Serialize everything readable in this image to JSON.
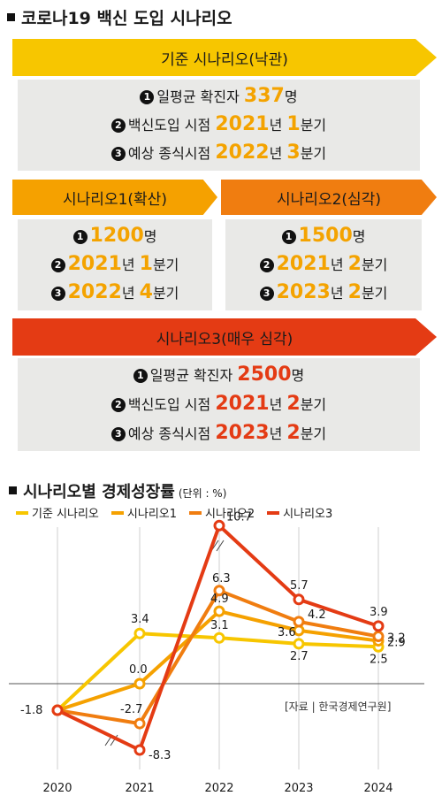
{
  "header": {
    "title": "코로나19 백신 도입 시나리오"
  },
  "scenarios": {
    "base": {
      "label": "기준 시나리오(낙관)",
      "items": [
        {
          "marker": "1",
          "prefix": "일평균 확진자 ",
          "value": "337",
          "suffix": "명"
        },
        {
          "marker": "2",
          "prefix": "백신도입 시점 ",
          "year": "2021",
          "year_unit": "년 ",
          "quarter": "1",
          "quarter_unit": "분기"
        },
        {
          "marker": "3",
          "prefix": "예상 종식시점 ",
          "year": "2022",
          "year_unit": "년 ",
          "quarter": "3",
          "quarter_unit": "분기"
        }
      ]
    },
    "s1": {
      "label": "시나리오1(확산)",
      "items": [
        {
          "marker": "1",
          "value": "1200",
          "suffix": "명"
        },
        {
          "marker": "2",
          "year": "2021",
          "year_unit": "년 ",
          "quarter": "1",
          "quarter_unit": "분기"
        },
        {
          "marker": "3",
          "year": "2022",
          "year_unit": "년 ",
          "quarter": "4",
          "quarter_unit": "분기"
        }
      ]
    },
    "s2": {
      "label": "시나리오2(심각)",
      "items": [
        {
          "marker": "1",
          "value": "1500",
          "suffix": "명"
        },
        {
          "marker": "2",
          "year": "2021",
          "year_unit": "년 ",
          "quarter": "2",
          "quarter_unit": "분기"
        },
        {
          "marker": "3",
          "year": "2023",
          "year_unit": "년 ",
          "quarter": "2",
          "quarter_unit": "분기"
        }
      ]
    },
    "s3": {
      "label": "시나리오3(매우 심각)",
      "items": [
        {
          "marker": "1",
          "prefix": "일평균 확진자 ",
          "value": "2500",
          "suffix": "명"
        },
        {
          "marker": "2",
          "prefix": "백신도입 시점 ",
          "year": "2021",
          "year_unit": "년 ",
          "quarter": "2",
          "quarter_unit": "분기"
        },
        {
          "marker": "3",
          "prefix": "예상 종식시점 ",
          "year": "2023",
          "year_unit": "년 ",
          "quarter": "2",
          "quarter_unit": "분기"
        }
      ]
    }
  },
  "colors": {
    "base": "#f7c600",
    "s1": "#f5a100",
    "s2": "#f07d10",
    "s3": "#e43b14",
    "panel": "#e9e9e7",
    "highlight_yellow": "#f4a300",
    "highlight_red": "#e43b14"
  },
  "chart_data": {
    "type": "line",
    "title": "시나리오별 경제성장률",
    "unit": "(단위 : %)",
    "x": [
      "2020",
      "2021",
      "2022",
      "2023",
      "2024"
    ],
    "series": [
      {
        "name": "기준 시나리오",
        "values": [
          -1.8,
          3.4,
          3.1,
          2.7,
          2.5
        ]
      },
      {
        "name": "시나리오1",
        "values": [
          -1.8,
          0.0,
          4.9,
          3.6,
          2.9
        ]
      },
      {
        "name": "시나리오2",
        "values": [
          -1.8,
          -2.7,
          6.3,
          4.2,
          3.2
        ]
      },
      {
        "name": "시나리오3",
        "values": [
          -1.8,
          -8.3,
          10.7,
          5.7,
          3.9
        ]
      }
    ],
    "value_labels": {
      "2020": [
        "-1.8"
      ],
      "2021": [
        "3.4",
        "0.0",
        "-2.7",
        "-8.3"
      ],
      "2022": [
        "10.7",
        "6.3",
        "4.9",
        "3.1"
      ],
      "2023": [
        "5.7",
        "4.2",
        "3.6",
        "2.7"
      ],
      "2024": [
        "3.9",
        "3.2",
        "2.9",
        "2.5"
      ]
    },
    "axis_break": "y-axis between -2.7 and -8.3",
    "grid": "vertical lines at each year plus a zero baseline",
    "legend_position": "top"
  },
  "source": "[자료 | 한국경제연구원]"
}
